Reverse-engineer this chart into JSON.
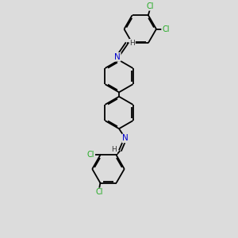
{
  "bg_color": "#dcdcdc",
  "bond_color": "#000000",
  "atom_colors": {
    "N": "#0000cc",
    "Cl": "#22aa22",
    "H": "#555555"
  },
  "lw": 1.3,
  "dbo": 0.055,
  "figsize": [
    3.0,
    3.0
  ],
  "dpi": 100,
  "xlim": [
    -2.5,
    2.5
  ],
  "ylim": [
    -5.5,
    5.5
  ],
  "font_size": 7.5,
  "cl_font_size": 7.0
}
